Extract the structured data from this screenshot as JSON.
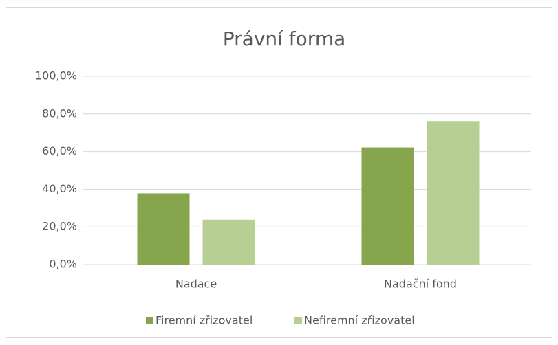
{
  "chart_data": {
    "type": "bar",
    "title": "Právní forma",
    "categories": [
      "Nadace",
      "Nadační fond"
    ],
    "series": [
      {
        "name": "Firemní zřizovatel",
        "color": "#87a54d",
        "values": [
          37.8,
          62.2
        ]
      },
      {
        "name": "Nefiremní zřizovatel",
        "color": "#b8cf94",
        "values": [
          23.8,
          76.2
        ]
      }
    ],
    "ylim": [
      0,
      100
    ],
    "yticks": [
      {
        "value": 0,
        "label": "0,0%"
      },
      {
        "value": 20,
        "label": "20,0%"
      },
      {
        "value": 40,
        "label": "40,0%"
      },
      {
        "value": 60,
        "label": "60,0%"
      },
      {
        "value": 80,
        "label": "80,0%"
      },
      {
        "value": 100,
        "label": "100,0%"
      }
    ],
    "grid": true,
    "legend": "bottom"
  }
}
